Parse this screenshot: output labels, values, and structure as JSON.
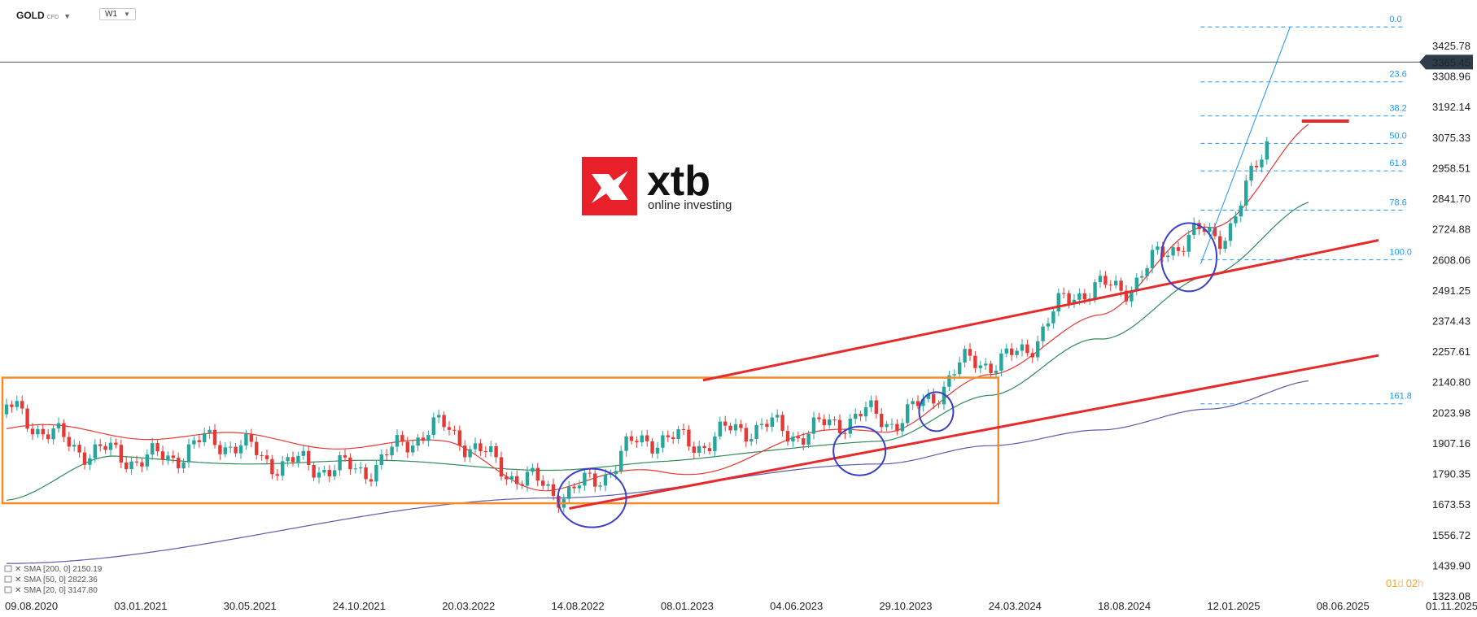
{
  "header": {
    "symbol": "GOLD",
    "symbol_suffix": "CFD",
    "timeframe": "W1"
  },
  "logo": {
    "brand": "xtb",
    "tagline": "online investing"
  },
  "price_axis": {
    "ticks": [
      3425.78,
      3308.96,
      3192.14,
      3075.33,
      2958.51,
      2841.7,
      2724.88,
      2608.06,
      2491.25,
      2374.43,
      2257.61,
      2140.8,
      2023.98,
      1907.16,
      1790.35,
      1673.53,
      1556.72,
      1439.9,
      1323.08
    ],
    "tick_labels": [
      "3425.78",
      "3308.96",
      "3192.14",
      "3075.33",
      "2958.51",
      "2841.70",
      "2724.88",
      "2608.06",
      "2491.25",
      "2374.43",
      "2257.61",
      "2140.80",
      "2023.98",
      "1907.16",
      "1790.35",
      "1673.53",
      "1556.72",
      "1439.90",
      "1323.08"
    ],
    "current_price": 3365.45,
    "current_price_label": "3365.45"
  },
  "time_axis": {
    "labels": [
      "09.08.2020",
      "03.01.2021",
      "30.05.2021",
      "24.10.2021",
      "20.03.2022",
      "14.08.2022",
      "08.01.2023",
      "04.06.2023",
      "29.10.2023",
      "24.03.2024",
      "18.08.2024",
      "12.01.2025",
      "08.06.2025",
      "01.11.2025"
    ]
  },
  "countdown": {
    "days": "01",
    "d": "d",
    "hours": "02",
    "h": "h"
  },
  "legend": [
    {
      "text": "SMA [200, 0] 2150.19",
      "color": "#5c5ca8"
    },
    {
      "text": "SMA [50, 0] 2822.36",
      "color": "#2e8b57"
    },
    {
      "text": "SMA [20, 0] 3147.80",
      "color": "#e53935"
    }
  ],
  "fibonacci": {
    "levels": [
      {
        "label": "0.0",
        "price": 3500
      },
      {
        "label": "23.6",
        "price": 3290
      },
      {
        "label": "38.2",
        "price": 3160
      },
      {
        "label": "50.0",
        "price": 3055
      },
      {
        "label": "61.8",
        "price": 2950
      },
      {
        "label": "78.6",
        "price": 2800
      },
      {
        "label": "100.0",
        "price": 2610
      },
      {
        "label": "161.8",
        "price": 2060
      }
    ]
  },
  "colors": {
    "bull": "#26a69a",
    "bear": "#e53935",
    "fib": "#2196f3",
    "box": "#f28c28",
    "trend": "#e52b2b",
    "circle": "#3a3fc8",
    "sma20": "#e53935",
    "sma50": "#2e8b57",
    "sma200": "#5c5ca8",
    "price_line": "#4a5a6a"
  },
  "chart_data": {
    "type": "candlestick",
    "title": "",
    "series_keypoints": {
      "close": [
        [
          "09.08.2020",
          2020
        ],
        [
          "03.01.2021",
          1850
        ],
        [
          "30.05.2021",
          1900
        ],
        [
          "24.10.2021",
          1800
        ],
        [
          "20.03.2022",
          1950
        ],
        [
          "14.08.2022",
          1720
        ],
        [
          "08.01.2023",
          1920
        ],
        [
          "04.06.2023",
          1960
        ],
        [
          "29.10.2023",
          2000
        ],
        [
          "24.03.2024",
          2220
        ],
        [
          "18.08.2024",
          2500
        ],
        [
          "12.01.2025",
          2700
        ],
        [
          "08.06.2025",
          3365
        ]
      ],
      "sma20": [
        [
          "09.08.2020",
          1960
        ],
        [
          "20.03.2022",
          1900
        ],
        [
          "14.08.2022",
          1740
        ],
        [
          "08.01.2023",
          1800
        ],
        [
          "29.10.2023",
          1970
        ],
        [
          "24.03.2024",
          2150
        ],
        [
          "18.08.2024",
          2420
        ],
        [
          "12.01.2025",
          2720
        ],
        [
          "08.06.2025",
          3147.8
        ]
      ],
      "sma50": [
        [
          "09.08.2020",
          1690
        ],
        [
          "03.01.2021",
          1850
        ],
        [
          "14.08.2022",
          1820
        ],
        [
          "08.01.2023",
          1830
        ],
        [
          "29.10.2023",
          1930
        ],
        [
          "24.03.2024",
          2080
        ],
        [
          "18.08.2024",
          2310
        ],
        [
          "12.01.2025",
          2560
        ],
        [
          "08.06.2025",
          2822.36
        ]
      ],
      "sma200": [
        [
          "09.08.2020",
          1450
        ],
        [
          "14.08.2022",
          1700
        ],
        [
          "29.10.2023",
          1830
        ],
        [
          "24.03.2024",
          1900
        ],
        [
          "18.08.2024",
          1960
        ],
        [
          "12.01.2025",
          2040
        ],
        [
          "08.06.2025",
          2150.19
        ]
      ]
    },
    "ylim": [
      1323.08,
      3425.78
    ]
  }
}
